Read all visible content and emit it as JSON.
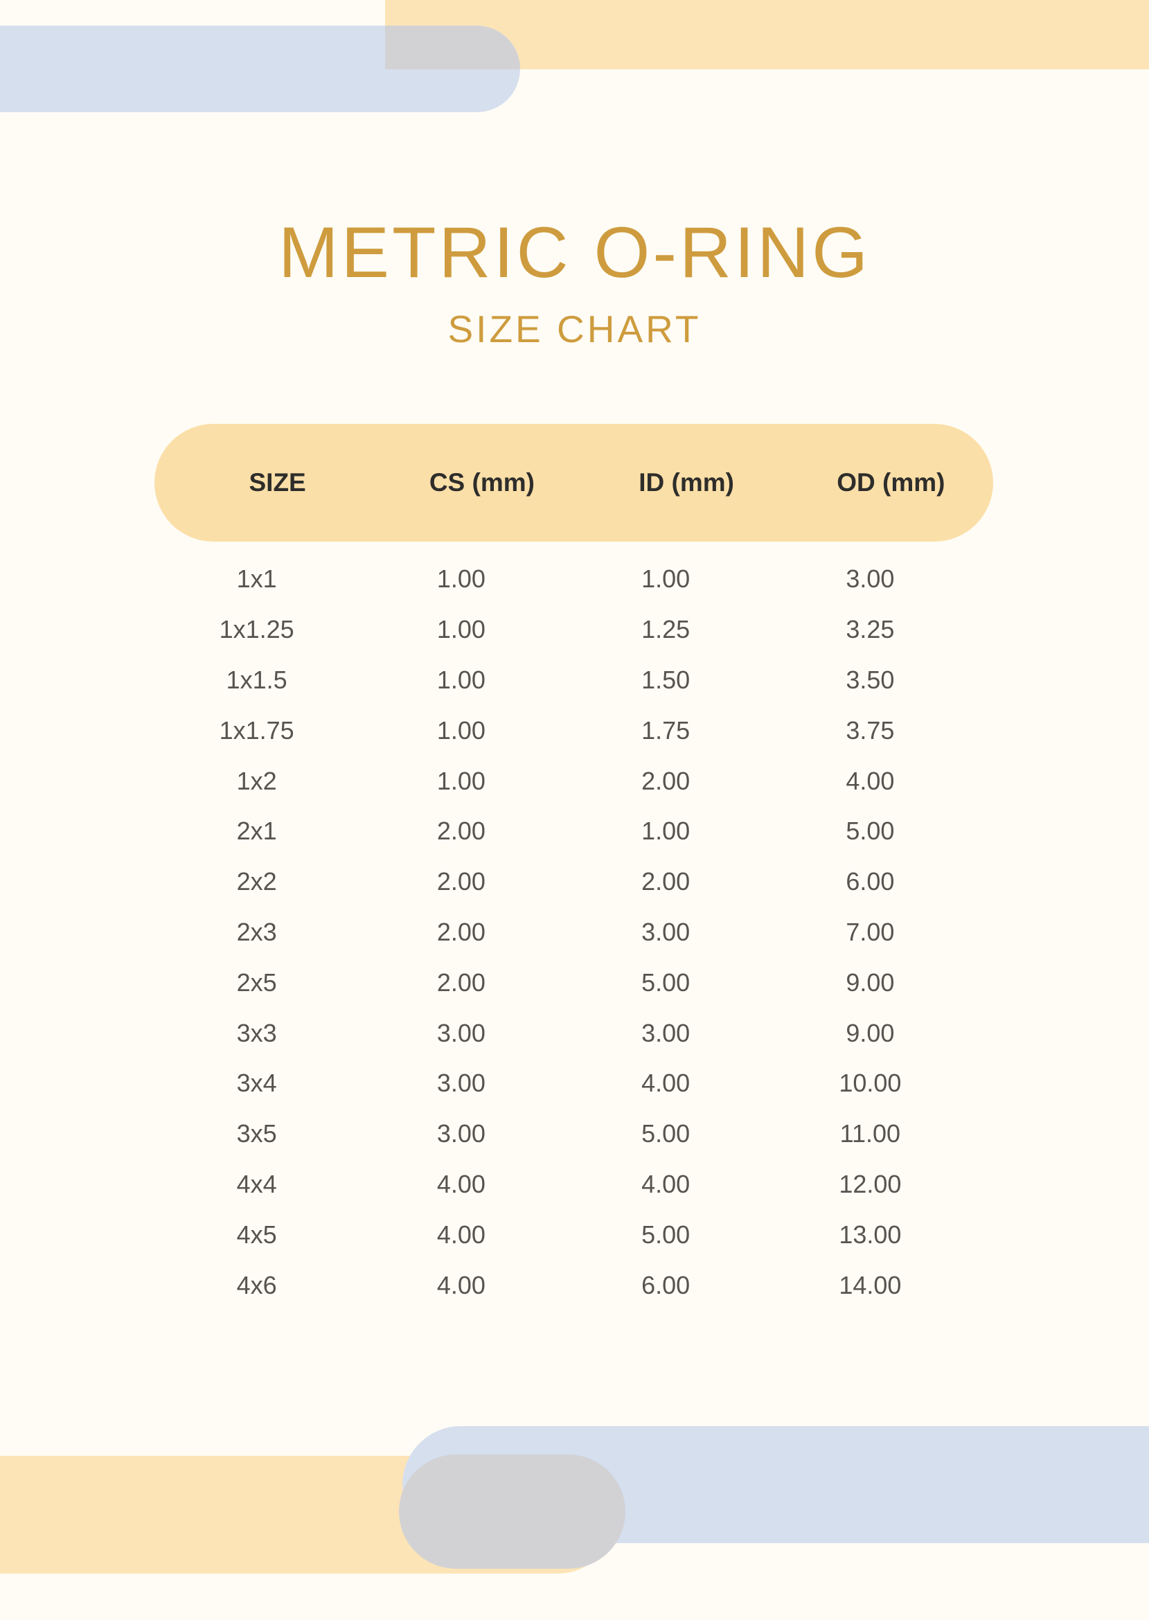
{
  "page": {
    "background": "#FFFCF5"
  },
  "header": {
    "title": "METRIC O-RING",
    "subtitle": "SIZE CHART",
    "title_color": "#CE9C3E"
  },
  "table": {
    "columns": [
      "SIZE",
      "CS (mm)",
      "ID (mm)",
      "OD (mm)"
    ],
    "rows": [
      [
        "1x1",
        "1.00",
        "1.00",
        "3.00"
      ],
      [
        "1x1.25",
        "1.00",
        "1.25",
        "3.25"
      ],
      [
        "1x1.5",
        "1.00",
        "1.50",
        "3.50"
      ],
      [
        "1x1.75",
        "1.00",
        "1.75",
        "3.75"
      ],
      [
        "1x2",
        "1.00",
        "2.00",
        "4.00"
      ],
      [
        "2x1",
        "2.00",
        "1.00",
        "5.00"
      ],
      [
        "2x2",
        "2.00",
        "2.00",
        "6.00"
      ],
      [
        "2x3",
        "2.00",
        "3.00",
        "7.00"
      ],
      [
        "2x5",
        "2.00",
        "5.00",
        "9.00"
      ],
      [
        "3x3",
        "3.00",
        "3.00",
        "9.00"
      ],
      [
        "3x4",
        "3.00",
        "4.00",
        "10.00"
      ],
      [
        "3x5",
        "3.00",
        "5.00",
        "11.00"
      ],
      [
        "4x4",
        "4.00",
        "4.00",
        "12.00"
      ],
      [
        "4x5",
        "4.00",
        "5.00",
        "13.00"
      ],
      [
        "4x6",
        "4.00",
        "6.00",
        "14.00"
      ]
    ],
    "header_bg": "#FBDFA8",
    "header_text_color": "#2E2D2B",
    "row_text_color": "#57534F"
  },
  "decorations": {
    "peach": "#FCE4B6",
    "blue": "#D6DFEE",
    "gray": "#D2D2D5"
  }
}
